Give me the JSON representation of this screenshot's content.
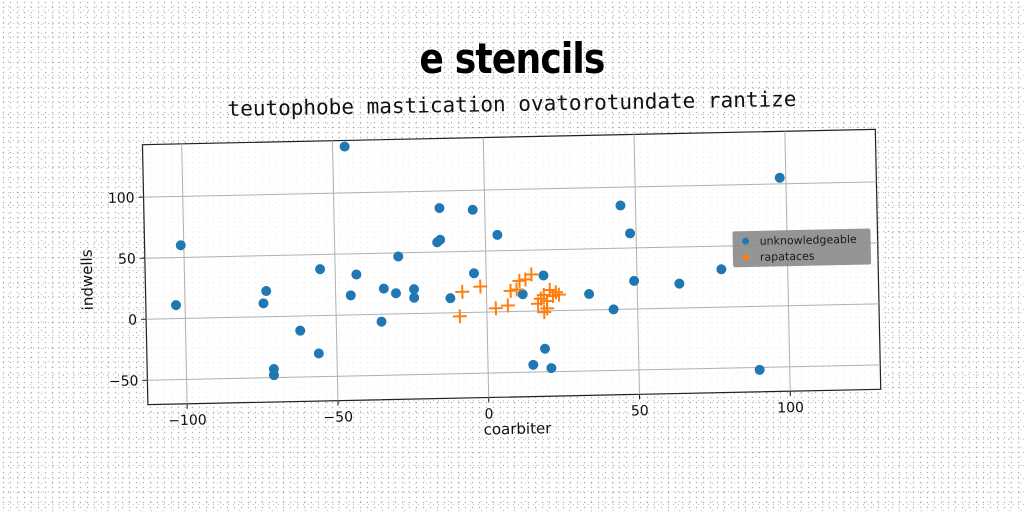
{
  "page": {
    "title": "e stencils",
    "subtitle": "teutophobe mastication ovatorotundate rantize"
  },
  "chart_data": {
    "type": "scatter",
    "title": "e stencils",
    "subtitle": "teutophobe mastication ovatorotundate rantize",
    "xlabel": "coarbiter",
    "ylabel": "indwells",
    "xlim": [
      -113,
      130
    ],
    "ylim": [
      -70,
      143
    ],
    "xticks": [
      -100,
      -50,
      0,
      50,
      100
    ],
    "xtick_labels": [
      "−100",
      "−50",
      "0",
      "50",
      "100"
    ],
    "yticks": [
      -50,
      0,
      50,
      100
    ],
    "ytick_labels": [
      "−50",
      "0",
      "50",
      "100"
    ],
    "grid": true,
    "legend_position": "right",
    "series": [
      {
        "name": "unknowledgeable",
        "marker": "circle",
        "color": "#1f77b4",
        "points": [
          [
            -46,
            138
          ],
          [
            -101,
            60
          ],
          [
            -103,
            11
          ],
          [
            -73,
            21
          ],
          [
            -74,
            11
          ],
          [
            -71,
            -43
          ],
          [
            -71,
            -48
          ],
          [
            -62,
            -12
          ],
          [
            -56,
            -31
          ],
          [
            -55,
            38
          ],
          [
            -43,
            33
          ],
          [
            -45,
            16
          ],
          [
            -34,
            21
          ],
          [
            -29,
            47
          ],
          [
            -30,
            17
          ],
          [
            -35,
            -6
          ],
          [
            -24,
            20
          ],
          [
            -24,
            13
          ],
          [
            -16,
            58
          ],
          [
            -15,
            60
          ],
          [
            -15,
            86
          ],
          [
            -4,
            84
          ],
          [
            -12,
            12
          ],
          [
            -4,
            32
          ],
          [
            4,
            63
          ],
          [
            12,
            14
          ],
          [
            15,
            -44
          ],
          [
            19,
            29
          ],
          [
            19,
            -31
          ],
          [
            21,
            -47
          ],
          [
            34,
            13
          ],
          [
            42,
            0
          ],
          [
            45,
            85
          ],
          [
            48,
            62
          ],
          [
            49,
            23
          ],
          [
            64,
            20
          ],
          [
            78,
            31
          ],
          [
            90,
            -52
          ],
          [
            98,
            105
          ]
        ]
      },
      {
        "name": "rapataces",
        "marker": "plus",
        "color": "#ff7f0e",
        "points": [
          [
            -8,
            17
          ],
          [
            -9,
            -3
          ],
          [
            -2,
            21
          ],
          [
            3,
            3
          ],
          [
            7,
            5
          ],
          [
            8,
            17
          ],
          [
            10,
            18
          ],
          [
            11,
            25
          ],
          [
            15,
            30
          ],
          [
            17,
            6
          ],
          [
            18,
            10
          ],
          [
            19,
            13
          ],
          [
            20,
            8
          ],
          [
            21,
            17
          ],
          [
            22,
            12
          ],
          [
            23,
            15
          ],
          [
            24,
            13
          ],
          [
            19,
            -1
          ],
          [
            20,
            2
          ],
          [
            13,
            26
          ]
        ]
      }
    ]
  }
}
